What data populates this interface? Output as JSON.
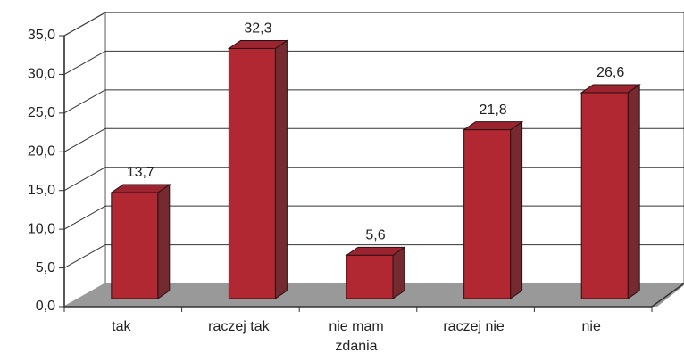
{
  "chart_data": {
    "type": "bar3d",
    "categories": [
      "tak",
      "raczej tak",
      "nie mam zdania",
      "raczej nie",
      "nie"
    ],
    "values": [
      13.7,
      32.3,
      5.6,
      21.8,
      26.6
    ],
    "value_labels": [
      "13,7",
      "32,3",
      "5,6",
      "21,8",
      "26,6"
    ],
    "color": "#b12833",
    "ylim": [
      0,
      35
    ],
    "yticks": [
      {
        "value": 0,
        "label": "0,0"
      },
      {
        "value": 5,
        "label": "5,0"
      },
      {
        "value": 10,
        "label": "10,0"
      },
      {
        "value": 15,
        "label": "15,0"
      },
      {
        "value": 20,
        "label": "20,0"
      },
      {
        "value": 25,
        "label": "25,0"
      },
      {
        "value": 30,
        "label": "30,0"
      },
      {
        "value": 35,
        "label": "35,0"
      }
    ],
    "grid": true
  }
}
